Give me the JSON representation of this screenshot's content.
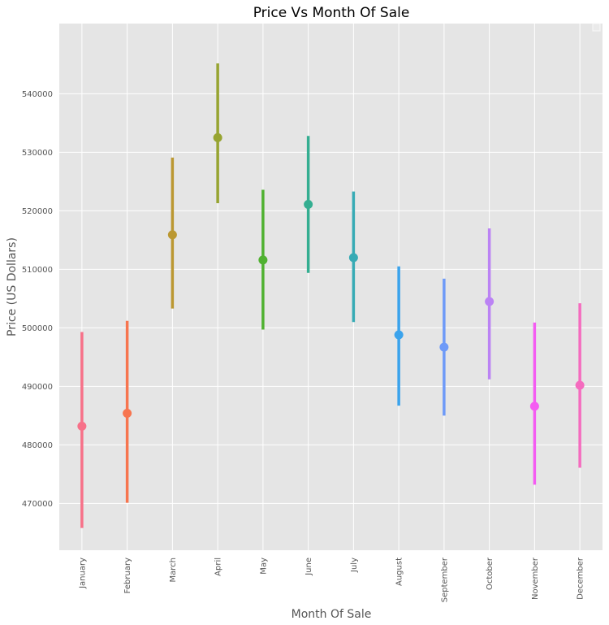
{
  "chart_data": {
    "type": "pointplot",
    "title": "Price Vs Month Of Sale",
    "xlabel": "Month Of Sale",
    "ylabel": "Price (US Dollars)",
    "ylim": [
      462000,
      552000
    ],
    "yticks": [
      470000,
      480000,
      490000,
      500000,
      510000,
      520000,
      530000,
      540000
    ],
    "ytick_labels": [
      "470000",
      "480000",
      "490000",
      "500000",
      "510000",
      "520000",
      "530000",
      "540000"
    ],
    "grid": true,
    "legend": "top-right (empty)",
    "categories": [
      "January",
      "February",
      "March",
      "April",
      "May",
      "June",
      "July",
      "August",
      "September",
      "October",
      "November",
      "December"
    ],
    "values": [
      483200,
      485400,
      515900,
      532500,
      511600,
      521100,
      512000,
      498800,
      496700,
      504500,
      486600,
      490200
    ],
    "ci_low": [
      465800,
      470100,
      503300,
      521300,
      499700,
      509400,
      501000,
      486700,
      485000,
      491200,
      473200,
      476100
    ],
    "ci_high": [
      499300,
      501200,
      529100,
      545200,
      523600,
      532800,
      523300,
      510500,
      508400,
      517000,
      500900,
      504200
    ],
    "colors": [
      "#f77189",
      "#f7754f",
      "#bb9832",
      "#97a431",
      "#50b131",
      "#34ae91",
      "#37abb5",
      "#3ba3ec",
      "#6e9af8",
      "#bb83f4",
      "#f45cf2",
      "#f56cbf"
    ]
  }
}
